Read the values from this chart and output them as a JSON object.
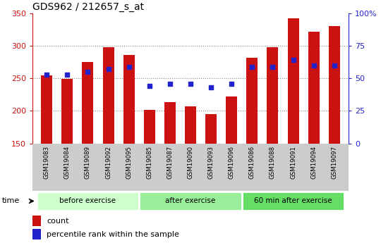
{
  "title": "GDS962 / 212657_s_at",
  "samples": [
    "GSM19083",
    "GSM19084",
    "GSM19089",
    "GSM19092",
    "GSM19095",
    "GSM19085",
    "GSM19087",
    "GSM19090",
    "GSM19093",
    "GSM19096",
    "GSM19086",
    "GSM19088",
    "GSM19091",
    "GSM19094",
    "GSM19097"
  ],
  "counts": [
    255,
    249,
    275,
    298,
    286,
    202,
    213,
    207,
    195,
    222,
    282,
    298,
    342,
    322,
    330
  ],
  "percentile_ranks": [
    53,
    53,
    55,
    57,
    59,
    44,
    46,
    46,
    43,
    46,
    59,
    59,
    64,
    60,
    60
  ],
  "groups": [
    {
      "label": "before exercise",
      "start": 0,
      "end": 5,
      "color": "#ccffcc"
    },
    {
      "label": "after exercise",
      "start": 5,
      "end": 10,
      "color": "#99ee99"
    },
    {
      "label": "60 min after exercise",
      "start": 10,
      "end": 15,
      "color": "#66dd66"
    }
  ],
  "ylim_left": [
    150,
    350
  ],
  "ylim_right": [
    0,
    100
  ],
  "bar_color": "#cc1111",
  "marker_color": "#2222cc",
  "grid_color": "#888888",
  "tick_label_color_left": "#cc1111",
  "tick_label_color_right": "#2222cc",
  "bar_width": 0.55,
  "left_yticks": [
    150,
    200,
    250,
    300,
    350
  ],
  "right_yticks": [
    0,
    25,
    50,
    75,
    100
  ],
  "legend_count_label": "count",
  "legend_pct_label": "percentile rank within the sample",
  "bg_color": "#ffffff",
  "plot_bg_color": "#ffffff"
}
